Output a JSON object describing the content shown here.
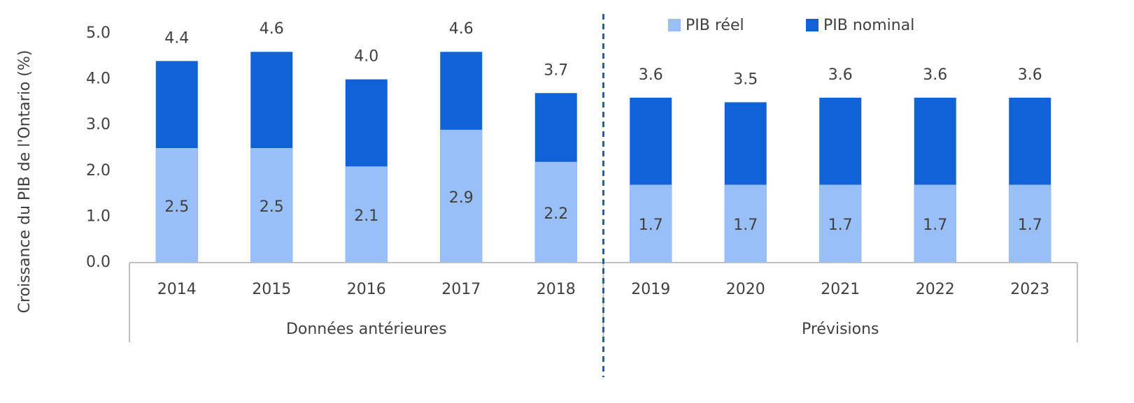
{
  "chart_data": {
    "type": "bar",
    "overlap": true,
    "y_label": "Croissance du PIB de l'Ontario (%)",
    "categories": [
      "2014",
      "2015",
      "2016",
      "2017",
      "2018",
      "2019",
      "2020",
      "2021",
      "2022",
      "2023"
    ],
    "groups": [
      {
        "name": "Données antérieures",
        "count": 5
      },
      {
        "name": "Prévisions",
        "count": 5
      }
    ],
    "series": [
      {
        "name": "PIB réel",
        "color": "#99bff9",
        "values": [
          2.5,
          2.5,
          2.1,
          2.9,
          2.2,
          1.7,
          1.7,
          1.7,
          1.7,
          1.7
        ]
      },
      {
        "name": "PIB nominal",
        "color": "#1062d6",
        "values": [
          4.4,
          4.6,
          4.0,
          4.6,
          3.7,
          3.6,
          3.5,
          3.6,
          3.6,
          3.6
        ],
        "value_labels": [
          "4.4",
          "4.6",
          "4.0",
          "4.6",
          "3.7",
          "3.6",
          "3.5",
          "3.6",
          "3.6",
          "3.6"
        ]
      }
    ],
    "ylim": [
      0,
      5
    ],
    "yticks": [
      {
        "value": 0,
        "label": "0.0"
      },
      {
        "value": 1,
        "label": "1.0"
      },
      {
        "value": 2,
        "label": "2.0"
      },
      {
        "value": 3,
        "label": "3.0"
      },
      {
        "value": 4,
        "label": "4.0"
      },
      {
        "value": 5,
        "label": "5.0"
      }
    ],
    "legend": "top-right",
    "grid": false
  }
}
